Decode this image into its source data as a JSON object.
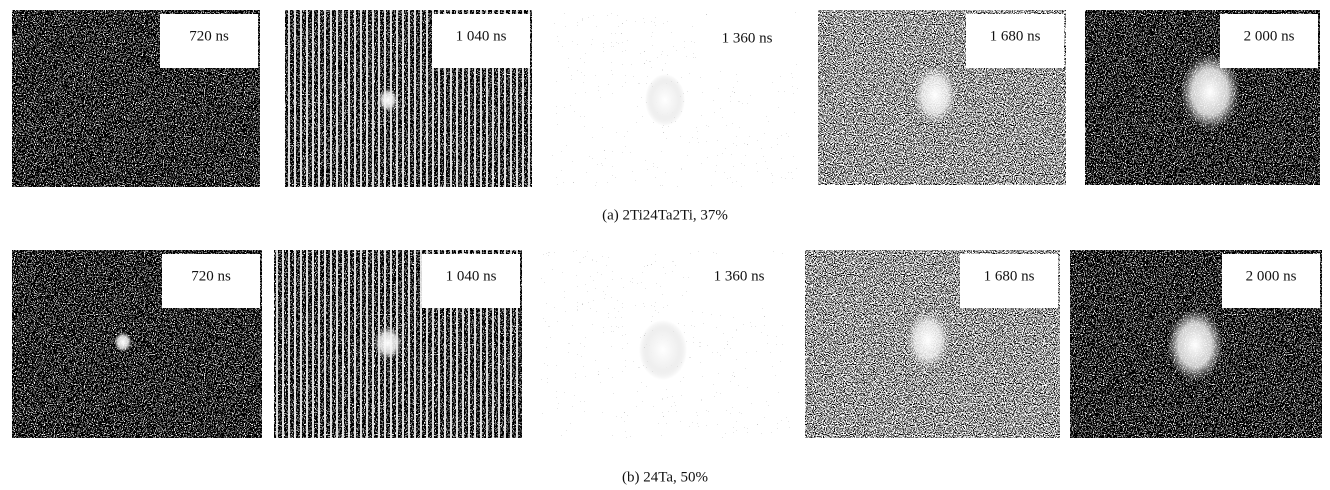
{
  "figure": {
    "rows": [
      {
        "caption": "(a) 2Ti24Ta2Ti, 37%",
        "frames": [
          "720 ns",
          "1 040 ns",
          "1 360 ns",
          "1 680 ns",
          "2 000 ns"
        ]
      },
      {
        "caption": "(b) 24Ta, 50%",
        "frames": [
          "720 ns",
          "1 040 ns",
          "1 360 ns",
          "1 680 ns",
          "2 000 ns"
        ]
      }
    ]
  }
}
